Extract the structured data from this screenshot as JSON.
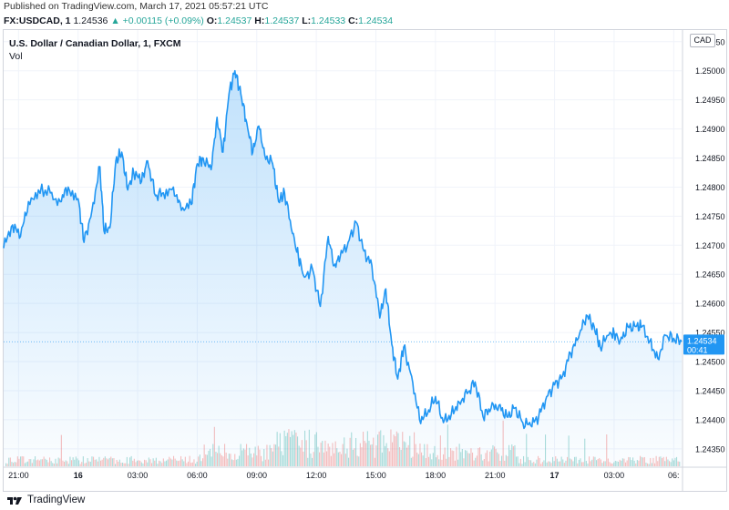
{
  "header": {
    "published": "Published on TradingView.com, March 17, 2021 05:57:21 UTC",
    "symbol": "FX:USDCAD, 1",
    "last": "1.24536",
    "change": "+0.00115 (+0.09%)",
    "o_label": "O:",
    "o_value": "1.24537",
    "h_label": "H:",
    "h_value": "1.24537",
    "l_label": "L:",
    "l_value": "1.24533",
    "c_label": "C:",
    "c_value": "1.24534"
  },
  "chart_title": "U.S. Dollar / Canadian Dollar, 1, FXCM",
  "volume_label": "Vol",
  "currency": "CAD",
  "price_badge": {
    "price": "1.24534",
    "countdown": "00:41"
  },
  "footer": {
    "brand": "TradingView"
  },
  "colors": {
    "line": "#2196f3",
    "fill": "#2196f3",
    "vol_up": "#26a69a",
    "vol_down": "#ef5350",
    "badge": "#2196f3"
  },
  "chart_data": {
    "type": "area",
    "y_ticks": [
      "1.25050",
      "1.25000",
      "1.24950",
      "1.24900",
      "1.24850",
      "1.24800",
      "1.24750",
      "1.24700",
      "1.24650",
      "1.24600",
      "1.24550",
      "1.24500",
      "1.24450",
      "1.24400",
      "1.24350"
    ],
    "y_range": [
      1.2432,
      1.2507
    ],
    "x_ticks": [
      {
        "label": "21:00",
        "bold": false,
        "t": -3
      },
      {
        "label": "16",
        "bold": true,
        "t": 0
      },
      {
        "label": "03:00",
        "bold": false,
        "t": 3
      },
      {
        "label": "06:00",
        "bold": false,
        "t": 6
      },
      {
        "label": "09:00",
        "bold": false,
        "t": 9
      },
      {
        "label": "12:00",
        "bold": false,
        "t": 12
      },
      {
        "label": "15:00",
        "bold": false,
        "t": 15
      },
      {
        "label": "18:00",
        "bold": false,
        "t": 18
      },
      {
        "label": "21:00",
        "bold": false,
        "t": 21
      },
      {
        "label": "17",
        "bold": true,
        "t": 24
      },
      {
        "label": "03:00",
        "bold": false,
        "t": 27
      },
      {
        "label": "06:",
        "bold": false,
        "t": 30
      }
    ],
    "x_range": [
      -3.75,
      30.4
    ],
    "series": [
      {
        "x": [
          -3.75,
          -3.3,
          -2.9,
          -2.5,
          -2.0,
          -1.4,
          -0.9,
          -0.5,
          0.0,
          0.3,
          0.7,
          1.1,
          1.3,
          1.6,
          1.9,
          2.2,
          2.5,
          2.8,
          3.2,
          3.5,
          3.9,
          4.3,
          4.8,
          5.2,
          5.7,
          6.0,
          6.3,
          6.7,
          7.0,
          7.3,
          7.6,
          7.9,
          8.2,
          8.5,
          8.8,
          9.1,
          9.4,
          9.8,
          10.1,
          10.4,
          10.8,
          11.1,
          11.4,
          11.8,
          12.2,
          12.6,
          12.9,
          13.2,
          13.6,
          14.0,
          14.4,
          14.8,
          15.2,
          15.5,
          15.8,
          16.1,
          16.4,
          16.8,
          17.2,
          17.6,
          18.0,
          18.4,
          18.8,
          19.2,
          19.6,
          20.0,
          20.4,
          20.8,
          21.2,
          21.6,
          22.0,
          22.4,
          22.8,
          23.2,
          23.6,
          24.0,
          24.4,
          24.8,
          25.2,
          25.6,
          26.0,
          26.3,
          26.7,
          27.0,
          27.3,
          27.7,
          28.1,
          28.4,
          28.8,
          29.2,
          29.6,
          30.0,
          30.4
        ],
        "y": [
          1.24695,
          1.24735,
          1.24715,
          1.24775,
          1.24795,
          1.2479,
          1.24775,
          1.248,
          1.2478,
          1.24705,
          1.2476,
          1.24835,
          1.24725,
          1.2473,
          1.24845,
          1.2486,
          1.24795,
          1.24825,
          1.2481,
          1.24845,
          1.24785,
          1.2479,
          1.248,
          1.2476,
          1.2477,
          1.2484,
          1.2485,
          1.2483,
          1.2492,
          1.2486,
          1.2496,
          1.25,
          1.2496,
          1.2491,
          1.2486,
          1.24905,
          1.24855,
          1.2484,
          1.24775,
          1.2479,
          1.2472,
          1.2468,
          1.24645,
          1.2466,
          1.24595,
          1.24715,
          1.24665,
          1.2468,
          1.24705,
          1.2474,
          1.2469,
          1.24665,
          1.24575,
          1.24625,
          1.2453,
          1.2447,
          1.24525,
          1.24475,
          1.244,
          1.2441,
          1.2444,
          1.24395,
          1.2441,
          1.2443,
          1.24445,
          1.24465,
          1.24405,
          1.2442,
          1.24425,
          1.24405,
          1.2442,
          1.24395,
          1.2439,
          1.24405,
          1.2444,
          1.2446,
          1.24475,
          1.24515,
          1.2454,
          1.2458,
          1.2456,
          1.24525,
          1.24545,
          1.2455,
          1.24535,
          1.2456,
          1.2456,
          1.2456,
          1.24535,
          1.24505,
          1.24545,
          1.2454,
          1.24534
        ]
      }
    ],
    "current": 1.24534
  }
}
